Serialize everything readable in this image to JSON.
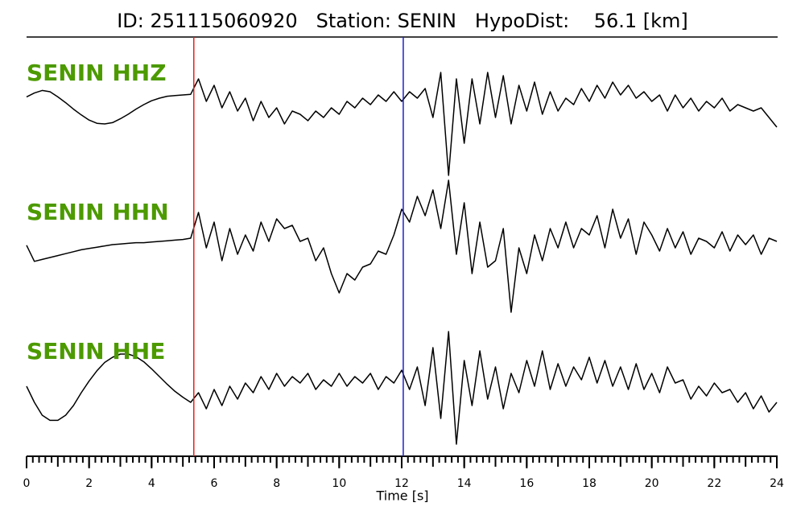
{
  "chart_data": {
    "type": "line",
    "title": "ID: 251115060920   Station: SENIN   HypoDist:    56.1 [km]",
    "xlabel": "Time [s]",
    "xlim": [
      0,
      24
    ],
    "xticks": [
      0,
      2,
      4,
      6,
      8,
      10,
      12,
      14,
      16,
      18,
      20,
      22,
      24
    ],
    "xminorticks": [
      0,
      0.2,
      0.4,
      0.6,
      0.8,
      1,
      1.2,
      1.4,
      1.6,
      1.8,
      2,
      2.2,
      2.4,
      2.6,
      2.8,
      3,
      3.2,
      3.4,
      3.6,
      3.8,
      4,
      4.2,
      4.4,
      4.6,
      4.8,
      5,
      5.2,
      5.4,
      5.6,
      5.8,
      6,
      6.2,
      6.4,
      6.6,
      6.8,
      7,
      7.2,
      7.4,
      7.6,
      7.8,
      8,
      8.2,
      8.4,
      8.6,
      8.8,
      9,
      9.2,
      9.4,
      9.6,
      9.8,
      10,
      10.2,
      10.4,
      10.6,
      10.8,
      11,
      11.2,
      11.4,
      11.6,
      11.8,
      12,
      12.2,
      12.4,
      12.6,
      12.8,
      13,
      13.2,
      13.4,
      13.6,
      13.8,
      14,
      14.2,
      14.4,
      14.6,
      14.8,
      15,
      15.2,
      15.4,
      15.6,
      15.8,
      16,
      16.2,
      16.4,
      16.6,
      16.8,
      17,
      17.2,
      17.4,
      17.6,
      17.8,
      18,
      18.2,
      18.4,
      18.6,
      18.8,
      19,
      19.2,
      19.4,
      19.6,
      19.8,
      20,
      20.2,
      20.4,
      20.6,
      20.8,
      21,
      21.2,
      21.4,
      21.6,
      21.8,
      22,
      22.2,
      22.4,
      22.6,
      22.8,
      23,
      23.2,
      23.4,
      23.6,
      23.8,
      24
    ],
    "vlines": [
      {
        "x": 5.35,
        "color": "#e8201c"
      },
      {
        "x": 12.05,
        "color": "#2020cc"
      }
    ],
    "label_color": "#4c9a00",
    "x": [
      0,
      0.25,
      0.5,
      0.75,
      1,
      1.25,
      1.5,
      1.75,
      2,
      2.25,
      2.5,
      2.75,
      3,
      3.25,
      3.5,
      3.75,
      4,
      4.25,
      4.5,
      4.75,
      5,
      5.25,
      5.5,
      5.75,
      6,
      6.25,
      6.5,
      6.75,
      7,
      7.25,
      7.5,
      7.75,
      8,
      8.25,
      8.5,
      8.75,
      9,
      9.25,
      9.5,
      9.75,
      10,
      10.25,
      10.5,
      10.75,
      11,
      11.25,
      11.5,
      11.75,
      12,
      12.25,
      12.5,
      12.75,
      13,
      13.25,
      13.5,
      13.75,
      14,
      14.25,
      14.5,
      14.75,
      15,
      15.25,
      15.5,
      15.75,
      16,
      16.25,
      16.5,
      16.75,
      17,
      17.25,
      17.5,
      17.75,
      18,
      18.25,
      18.5,
      18.75,
      19,
      19.25,
      19.5,
      19.75,
      20,
      20.25,
      20.5,
      20.75,
      21,
      21.25,
      21.5,
      21.75,
      22,
      22.25,
      22.5,
      22.75,
      23,
      23.25,
      23.5,
      23.75,
      24
    ],
    "series": [
      {
        "name": "SENIN HHZ",
        "color": "#000000",
        "values": [
          0.12,
          0.18,
          0.22,
          0.2,
          0.12,
          0.03,
          -0.07,
          -0.16,
          -0.24,
          -0.29,
          -0.3,
          -0.28,
          -0.22,
          -0.15,
          -0.07,
          0,
          0.06,
          0.1,
          0.13,
          0.14,
          0.15,
          0.16,
          0.4,
          0.05,
          0.3,
          -0.05,
          0.2,
          -0.1,
          0.1,
          -0.25,
          0.05,
          -0.2,
          -0.05,
          -0.3,
          -0.1,
          -0.15,
          -0.25,
          -0.1,
          -0.2,
          -0.05,
          -0.15,
          0.05,
          -0.05,
          0.1,
          0,
          0.15,
          0.05,
          0.2,
          0.05,
          0.2,
          0.1,
          0.25,
          -0.2,
          0.5,
          -1.1,
          0.4,
          -0.6,
          0.4,
          -0.3,
          0.5,
          -0.2,
          0.45,
          -0.3,
          0.3,
          -0.1,
          0.35,
          -0.15,
          0.2,
          -0.1,
          0.1,
          0,
          0.25,
          0.05,
          0.3,
          0.1,
          0.35,
          0.15,
          0.3,
          0.1,
          0.2,
          0.05,
          0.15,
          -0.1,
          0.15,
          -0.05,
          0.1,
          -0.1,
          0.05,
          -0.05,
          0.1,
          -0.1,
          0,
          -0.05,
          -0.1,
          -0.05,
          -0.2,
          -0.35
        ]
      },
      {
        "name": "SENIN HHN",
        "color": "#000000",
        "values": [
          -0.06,
          -0.31,
          -0.28,
          -0.25,
          -0.22,
          -0.19,
          -0.16,
          -0.13,
          -0.11,
          -0.09,
          -0.07,
          -0.05,
          -0.04,
          -0.03,
          -0.02,
          -0.02,
          -0.01,
          0,
          0.01,
          0.02,
          0.03,
          0.05,
          0.45,
          -0.1,
          0.3,
          -0.3,
          0.2,
          -0.2,
          0.1,
          -0.15,
          0.3,
          0,
          0.35,
          0.2,
          0.25,
          0,
          0.05,
          -0.3,
          -0.1,
          -0.5,
          -0.8,
          -0.5,
          -0.6,
          -0.4,
          -0.35,
          -0.15,
          -0.2,
          0.1,
          0.5,
          0.3,
          0.7,
          0.4,
          0.8,
          0.2,
          0.95,
          -0.2,
          0.6,
          -0.5,
          0.3,
          -0.4,
          -0.3,
          0.2,
          -1.1,
          -0.1,
          -0.5,
          0.1,
          -0.3,
          0.2,
          -0.1,
          0.3,
          -0.1,
          0.2,
          0.1,
          0.4,
          -0.1,
          0.5,
          0.05,
          0.35,
          -0.2,
          0.3,
          0.1,
          -0.15,
          0.2,
          -0.1,
          0.15,
          -0.2,
          0.05,
          0,
          -0.1,
          0.15,
          -0.15,
          0.1,
          -0.05,
          0.1,
          -0.2,
          0.05,
          0
        ]
      },
      {
        "name": "SENIN HHE",
        "color": "#000000",
        "values": [
          0,
          -0.25,
          -0.45,
          -0.53,
          -0.53,
          -0.45,
          -0.3,
          -0.1,
          0.08,
          0.24,
          0.37,
          0.45,
          0.5,
          0.5,
          0.46,
          0.38,
          0.27,
          0.15,
          0.03,
          -0.08,
          -0.17,
          -0.25,
          -0.1,
          -0.35,
          -0.05,
          -0.3,
          0,
          -0.2,
          0.05,
          -0.1,
          0.15,
          -0.05,
          0.2,
          0,
          0.15,
          0.05,
          0.2,
          -0.05,
          0.1,
          0,
          0.2,
          0,
          0.15,
          0.05,
          0.2,
          -0.05,
          0.15,
          0.05,
          0.25,
          -0.05,
          0.3,
          -0.3,
          0.6,
          -0.5,
          0.85,
          -0.9,
          0.4,
          -0.3,
          0.55,
          -0.2,
          0.3,
          -0.35,
          0.2,
          -0.1,
          0.4,
          0,
          0.55,
          -0.05,
          0.35,
          0,
          0.3,
          0.1,
          0.45,
          0.05,
          0.4,
          0,
          0.3,
          -0.05,
          0.35,
          -0.05,
          0.2,
          -0.1,
          0.3,
          0.05,
          0.1,
          -0.2,
          0,
          -0.15,
          0.05,
          -0.1,
          -0.05,
          -0.25,
          -0.1,
          -0.35,
          -0.15,
          -0.4,
          -0.25
        ]
      }
    ]
  }
}
